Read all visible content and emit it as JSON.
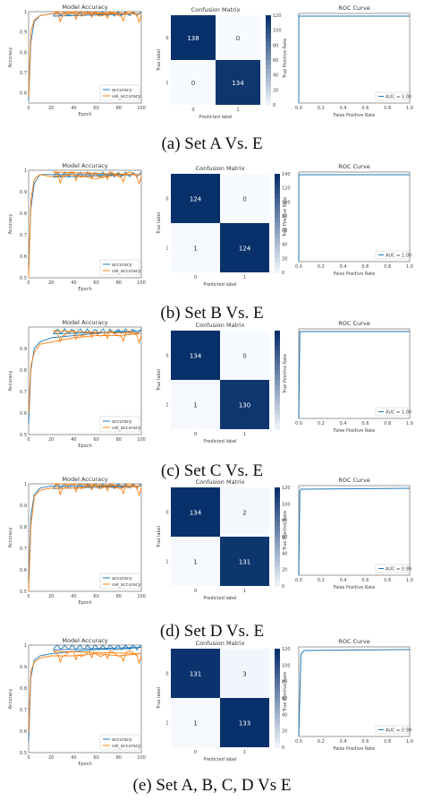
{
  "figure": {
    "panels": [
      {
        "caption": "(a) Set A Vs. E"
      },
      {
        "caption": "(b) Set B Vs. E"
      },
      {
        "caption": "(c) Set C Vs. E"
      },
      {
        "caption": "(d) Set D Vs. E"
      },
      {
        "caption": "(e) Set A, B, C, D Vs E"
      }
    ]
  },
  "chart_data": [
    {
      "panel": "a",
      "type": "line",
      "title": "Model Accuracy",
      "xlabel": "Epoch",
      "ylabel": "Accuracy",
      "x": [
        0,
        2,
        5,
        10,
        20,
        40,
        60,
        80,
        100
      ],
      "xlim": [
        0,
        100
      ],
      "ylim": [
        0.55,
        1.0
      ],
      "xticks": [
        0,
        20,
        40,
        60,
        80,
        100
      ],
      "yticks": [
        0.6,
        0.7,
        0.8,
        0.9,
        1.0
      ],
      "series": [
        {
          "name": "accuracy",
          "color": "#1f77b4",
          "values": [
            0.56,
            0.85,
            0.95,
            0.98,
            0.99,
            0.99,
            0.99,
            0.99,
            0.99
          ]
        },
        {
          "name": "val_accuracy",
          "color": "#ff7f0e",
          "values": [
            0.58,
            0.9,
            0.96,
            0.98,
            0.99,
            0.99,
            0.99,
            0.99,
            0.99
          ]
        }
      ],
      "legend": "bottom-right"
    },
    {
      "panel": "a",
      "type": "heatmap",
      "title": "Confusion Matrix",
      "xlabel": "Predicted label",
      "ylabel": "True label",
      "labels": [
        "0",
        "1"
      ],
      "values": [
        [
          138,
          0
        ],
        [
          0,
          134
        ]
      ],
      "cbar_ticks": [
        0,
        20,
        40,
        60,
        80,
        100,
        120
      ]
    },
    {
      "panel": "a",
      "type": "line",
      "title": "ROC Curve",
      "xlabel": "False Positive Rate",
      "ylabel": "True Positive Rate",
      "xlim": [
        0,
        1
      ],
      "ylim": [
        0,
        1
      ],
      "xticks": [
        "0.0",
        "0.2",
        "0.4",
        "0.6",
        "0.8",
        "1.0"
      ],
      "series": [
        {
          "name": "AUC = 1.00",
          "color": "#1f77b4",
          "x": [
            0,
            0,
            1
          ],
          "y": [
            0,
            1,
            1
          ]
        }
      ],
      "legend": "bottom-right"
    },
    {
      "panel": "b",
      "type": "line",
      "title": "Model Accuracy",
      "xlabel": "Epoch",
      "ylabel": "Accuracy",
      "x": [
        0,
        2,
        5,
        10,
        20,
        40,
        60,
        80,
        100
      ],
      "xlim": [
        0,
        100
      ],
      "ylim": [
        0.5,
        1.0
      ],
      "xticks": [
        0,
        20,
        40,
        60,
        80,
        100
      ],
      "yticks": [
        0.5,
        0.6,
        0.7,
        0.8,
        0.9,
        1.0
      ],
      "series": [
        {
          "name": "accuracy",
          "color": "#1f77b4",
          "values": [
            0.55,
            0.82,
            0.94,
            0.98,
            0.98,
            0.98,
            0.98,
            0.98,
            0.98
          ]
        },
        {
          "name": "val_accuracy",
          "color": "#ff7f0e",
          "values": [
            0.5,
            0.86,
            0.96,
            0.98,
            0.97,
            0.98,
            0.96,
            0.98,
            0.98
          ]
        }
      ],
      "legend": "bottom-right"
    },
    {
      "panel": "b",
      "type": "heatmap",
      "title": "Confusion Matrix",
      "xlabel": "Predicted label",
      "ylabel": "True label",
      "labels": [
        "0",
        "1"
      ],
      "values": [
        [
          124,
          0
        ],
        [
          1,
          124
        ]
      ],
      "cbar_ticks": [
        0,
        20,
        40,
        60,
        80,
        100,
        120,
        140
      ]
    },
    {
      "panel": "b",
      "type": "line",
      "title": "ROC Curve",
      "xlabel": "False Positive Rate",
      "ylabel": "True Positive Rate",
      "xlim": [
        0,
        1
      ],
      "ylim": [
        0,
        1
      ],
      "xticks": [
        "0.0",
        "0.2",
        "0.4",
        "0.6",
        "0.8",
        "1.0"
      ],
      "series": [
        {
          "name": "AUC = 1.00",
          "color": "#1f77b4",
          "x": [
            0,
            0,
            1
          ],
          "y": [
            0,
            1,
            1
          ]
        }
      ],
      "legend": "bottom-right"
    },
    {
      "panel": "c",
      "type": "line",
      "title": "Model Accuracy",
      "xlabel": "Epoch",
      "ylabel": "Accuracy",
      "x": [
        0,
        2,
        5,
        10,
        20,
        40,
        60,
        80,
        100
      ],
      "xlim": [
        0,
        100
      ],
      "ylim": [
        0.5,
        1.0
      ],
      "xticks": [
        0,
        20,
        40,
        60,
        80,
        100
      ],
      "yticks": [
        0.5,
        0.6,
        0.7,
        0.8,
        0.9
      ],
      "series": [
        {
          "name": "accuracy",
          "color": "#1f77b4",
          "values": [
            0.55,
            0.8,
            0.9,
            0.93,
            0.95,
            0.96,
            0.97,
            0.98,
            0.98
          ]
        },
        {
          "name": "val_accuracy",
          "color": "#ff7f0e",
          "values": [
            0.6,
            0.82,
            0.88,
            0.92,
            0.93,
            0.95,
            0.96,
            0.96,
            0.97
          ]
        }
      ],
      "legend": "bottom-right"
    },
    {
      "panel": "c",
      "type": "heatmap",
      "title": "Confusion Matrix",
      "xlabel": "Predicted label",
      "ylabel": "True label",
      "labels": [
        "0",
        "1"
      ],
      "values": [
        [
          134,
          0
        ],
        [
          1,
          130
        ]
      ],
      "cbar_ticks": []
    },
    {
      "panel": "c",
      "type": "line",
      "title": "ROC Curve",
      "xlabel": "False Positive Rate",
      "ylabel": "True Positive Rate",
      "xlim": [
        0,
        1
      ],
      "ylim": [
        0,
        1
      ],
      "xticks": [
        "0.0",
        "0.2",
        "0.4",
        "0.6",
        "0.8",
        "1.0"
      ],
      "series": [
        {
          "name": "AUC = 1.00",
          "color": "#1f77b4",
          "x": [
            0,
            0.01,
            1
          ],
          "y": [
            0,
            1,
            1
          ]
        }
      ],
      "legend": "bottom-right"
    },
    {
      "panel": "d",
      "type": "line",
      "title": "Model Accuracy",
      "xlabel": "Epoch",
      "ylabel": "Accuracy",
      "x": [
        0,
        2,
        5,
        10,
        20,
        40,
        60,
        80,
        100
      ],
      "xlim": [
        0,
        100
      ],
      "ylim": [
        0.5,
        1.0
      ],
      "xticks": [
        0,
        20,
        40,
        60,
        80,
        100
      ],
      "yticks": [
        0.5,
        0.6,
        0.7,
        0.8,
        0.9,
        1.0
      ],
      "series": [
        {
          "name": "accuracy",
          "color": "#1f77b4",
          "values": [
            0.55,
            0.85,
            0.95,
            0.98,
            0.99,
            0.99,
            0.99,
            0.99,
            0.99
          ]
        },
        {
          "name": "val_accuracy",
          "color": "#ff7f0e",
          "values": [
            0.5,
            0.8,
            0.94,
            0.97,
            0.98,
            0.98,
            0.99,
            0.98,
            0.99
          ]
        }
      ],
      "legend": "bottom-right"
    },
    {
      "panel": "d",
      "type": "heatmap",
      "title": "Confusion Matrix",
      "xlabel": "Predicted label",
      "ylabel": "True label",
      "labels": [
        "0",
        "1"
      ],
      "values": [
        [
          134,
          2
        ],
        [
          1,
          131
        ]
      ],
      "cbar_ticks": [
        0,
        20,
        40,
        60,
        80,
        100,
        120
      ]
    },
    {
      "panel": "d",
      "type": "line",
      "title": "ROC Curve",
      "xlabel": "False Positive Rate",
      "ylabel": "True Positive Rate",
      "xlim": [
        0,
        1
      ],
      "ylim": [
        0,
        1
      ],
      "xticks": [
        "0.0",
        "0.2",
        "0.4",
        "0.6",
        "0.8",
        "1.0"
      ],
      "series": [
        {
          "name": "AUC = 0.99",
          "color": "#1f77b4",
          "x": [
            0,
            0.01,
            0.02,
            1
          ],
          "y": [
            0,
            0.97,
            0.99,
            1
          ]
        }
      ],
      "legend": "bottom-right"
    },
    {
      "panel": "e",
      "type": "line",
      "title": "Model Accuracy",
      "xlabel": "Epoch",
      "ylabel": "Accuracy",
      "x": [
        0,
        2,
        5,
        10,
        20,
        40,
        60,
        80,
        100
      ],
      "xlim": [
        0,
        100
      ],
      "ylim": [
        0.5,
        1.0
      ],
      "xticks": [
        0,
        20,
        40,
        60,
        80,
        100
      ],
      "yticks": [
        0.5,
        0.6,
        0.7,
        0.8,
        0.9,
        1.0
      ],
      "series": [
        {
          "name": "accuracy",
          "color": "#1f77b4",
          "values": [
            0.55,
            0.85,
            0.93,
            0.95,
            0.96,
            0.97,
            0.98,
            0.98,
            0.99
          ]
        },
        {
          "name": "val_accuracy",
          "color": "#ff7f0e",
          "values": [
            0.6,
            0.88,
            0.92,
            0.94,
            0.95,
            0.95,
            0.96,
            0.95,
            0.96
          ]
        }
      ],
      "legend": "bottom-right"
    },
    {
      "panel": "e",
      "type": "heatmap",
      "title": "Confusion Matrix",
      "xlabel": "Predicted label",
      "ylabel": "True label",
      "labels": [
        "0",
        "1"
      ],
      "values": [
        [
          131,
          3
        ],
        [
          1,
          133
        ]
      ],
      "cbar_ticks": [
        0,
        20,
        40,
        60,
        80,
        100,
        120
      ]
    },
    {
      "panel": "e",
      "type": "line",
      "title": "ROC Curve",
      "xlabel": "False Positive Rate",
      "ylabel": "True Positive Rate",
      "xlim": [
        0,
        1
      ],
      "ylim": [
        0,
        1
      ],
      "xticks": [
        "0.0",
        "0.2",
        "0.4",
        "0.6",
        "0.8",
        "1.0"
      ],
      "series": [
        {
          "name": "AUC = 0.99",
          "color": "#1f77b4",
          "x": [
            0,
            0.02,
            0.05,
            1
          ],
          "y": [
            0,
            0.95,
            0.99,
            1
          ]
        }
      ],
      "legend": "bottom-right"
    }
  ]
}
